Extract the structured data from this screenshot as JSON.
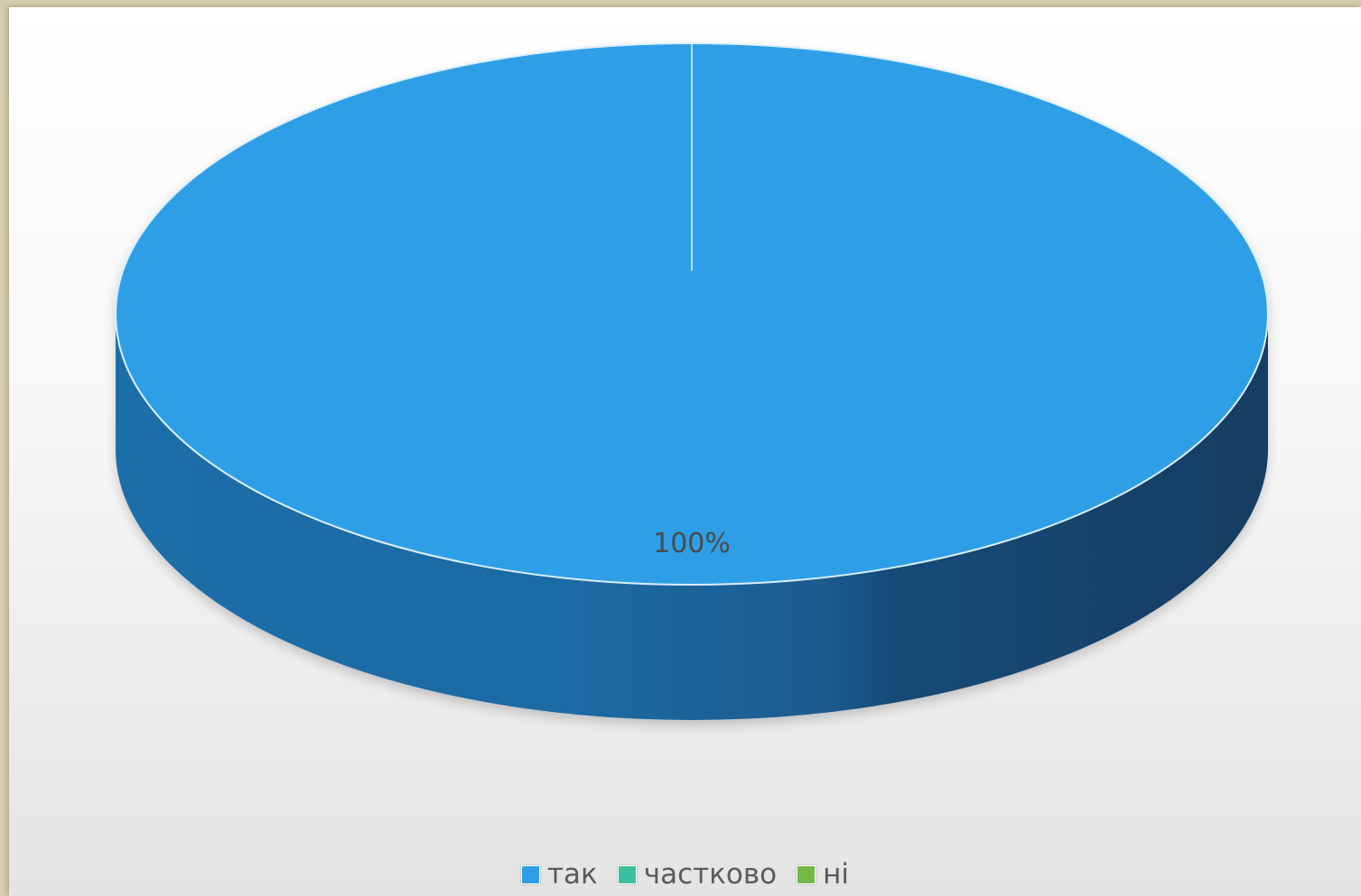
{
  "chart_data": {
    "type": "pie",
    "style": "3d",
    "categories": [
      "так",
      "частково",
      "ні"
    ],
    "values": [
      100,
      0,
      0
    ],
    "data_labels": [
      "100%"
    ],
    "colors": [
      "#2e9fe6",
      "#3bbf9c",
      "#74b845"
    ],
    "legend_position": "bottom"
  }
}
